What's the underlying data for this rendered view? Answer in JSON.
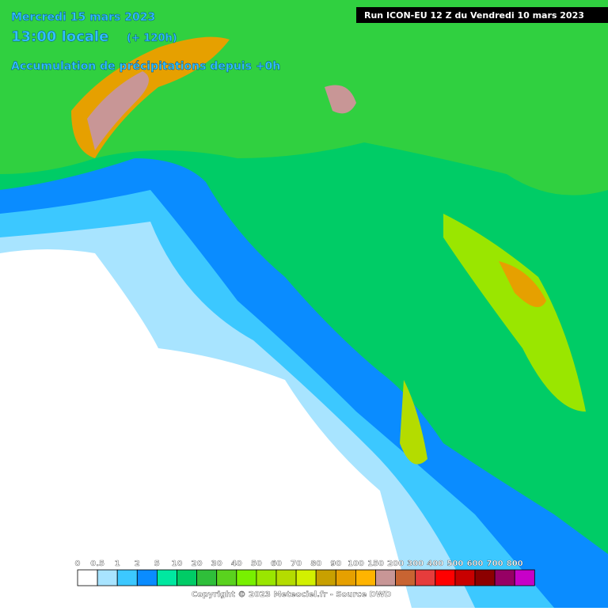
{
  "header": {
    "date": "Mercredi 15 mars 2023",
    "time": "13:00 locale",
    "lead": "(+ 120h)",
    "field": "Accumulation de précipitations depuis +0h",
    "run": "Run ICON-EU 12 Z du Vendredi 10 mars 2023"
  },
  "legend": {
    "items": [
      {
        "label": "0",
        "color": "#ffffff"
      },
      {
        "label": "0.5",
        "color": "#a8e4ff"
      },
      {
        "label": "1",
        "color": "#3cc8ff"
      },
      {
        "label": "2",
        "color": "#0a8cff"
      },
      {
        "label": "5",
        "color": "#00e8a0"
      },
      {
        "label": "10",
        "color": "#00cc66"
      },
      {
        "label": "20",
        "color": "#2fbf3a"
      },
      {
        "label": "30",
        "color": "#5ad21e"
      },
      {
        "label": "40",
        "color": "#78f000"
      },
      {
        "label": "50",
        "color": "#9ae600"
      },
      {
        "label": "60",
        "color": "#b4dc00"
      },
      {
        "label": "70",
        "color": "#d2f000"
      },
      {
        "label": "80",
        "color": "#c8a000"
      },
      {
        "label": "90",
        "color": "#e6a000"
      },
      {
        "label": "100",
        "color": "#ffb400"
      },
      {
        "label": "150",
        "color": "#c89696"
      },
      {
        "label": "200",
        "color": "#c86432"
      },
      {
        "label": "300",
        "color": "#e63c3c"
      },
      {
        "label": "400",
        "color": "#ff0000"
      },
      {
        "label": "500",
        "color": "#c80000"
      },
      {
        "label": "600",
        "color": "#8c0000"
      },
      {
        "label": "700",
        "color": "#960064"
      },
      {
        "label": "800",
        "color": "#c800c8"
      }
    ]
  },
  "footer": {
    "copyright": "Copyright © 2023 Meteociel.fr - Source DWD"
  }
}
